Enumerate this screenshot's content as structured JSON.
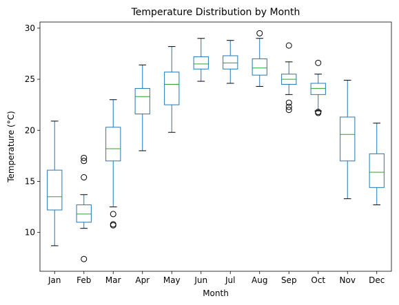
{
  "chart_data": {
    "type": "box",
    "title": "Temperature Distribution by Month",
    "xlabel": "Month",
    "ylabel": "Temperature (°C)",
    "ylim": [
      6.2,
      30.6
    ],
    "yticks": [
      10,
      15,
      20,
      25,
      30
    ],
    "grid": false,
    "colors": {
      "box": "#1f77b4",
      "median": "#2ca02c",
      "whisker": "#1f77b4",
      "cap": "#000000",
      "outlier": "#000000"
    },
    "categories": [
      "Jan",
      "Feb",
      "Mar",
      "Apr",
      "May",
      "Jun",
      "Jul",
      "Aug",
      "Sep",
      "Oct",
      "Nov",
      "Dec"
    ],
    "boxes": [
      {
        "month": "Jan",
        "whislo": 8.7,
        "q1": 12.2,
        "med": 13.5,
        "q3": 16.1,
        "whishi": 20.9,
        "fliers": []
      },
      {
        "month": "Feb",
        "whislo": 10.4,
        "q1": 11.0,
        "med": 11.8,
        "q3": 12.7,
        "whishi": 13.7,
        "fliers": [
          17.3,
          17.0,
          15.4,
          7.4
        ]
      },
      {
        "month": "Mar",
        "whislo": 12.5,
        "q1": 17.0,
        "med": 18.2,
        "q3": 20.3,
        "whishi": 23.0,
        "fliers": [
          11.8,
          10.8,
          10.7
        ]
      },
      {
        "month": "Apr",
        "whislo": 18.0,
        "q1": 21.6,
        "med": 23.3,
        "q3": 24.1,
        "whishi": 26.4,
        "fliers": []
      },
      {
        "month": "May",
        "whislo": 19.8,
        "q1": 22.5,
        "med": 24.5,
        "q3": 25.7,
        "whishi": 28.2,
        "fliers": []
      },
      {
        "month": "Jun",
        "whislo": 24.8,
        "q1": 26.0,
        "med": 26.5,
        "q3": 27.2,
        "whishi": 29.0,
        "fliers": []
      },
      {
        "month": "Jul",
        "whislo": 24.6,
        "q1": 26.0,
        "med": 26.6,
        "q3": 27.3,
        "whishi": 28.8,
        "fliers": []
      },
      {
        "month": "Aug",
        "whislo": 24.3,
        "q1": 25.4,
        "med": 26.1,
        "q3": 27.0,
        "whishi": 29.0,
        "fliers": [
          29.5
        ]
      },
      {
        "month": "Sep",
        "whislo": 23.5,
        "q1": 24.5,
        "med": 25.0,
        "q3": 25.5,
        "whishi": 26.7,
        "fliers": [
          28.3,
          22.7,
          22.3,
          22.0
        ]
      },
      {
        "month": "Oct",
        "whislo": 21.9,
        "q1": 23.5,
        "med": 24.1,
        "q3": 24.6,
        "whishi": 25.5,
        "fliers": [
          26.6,
          21.8,
          21.7
        ]
      },
      {
        "month": "Nov",
        "whislo": 13.3,
        "q1": 17.0,
        "med": 19.6,
        "q3": 21.3,
        "whishi": 24.9,
        "fliers": []
      },
      {
        "month": "Dec",
        "whislo": 12.7,
        "q1": 14.4,
        "med": 15.9,
        "q3": 17.7,
        "whishi": 20.7,
        "fliers": []
      }
    ]
  }
}
